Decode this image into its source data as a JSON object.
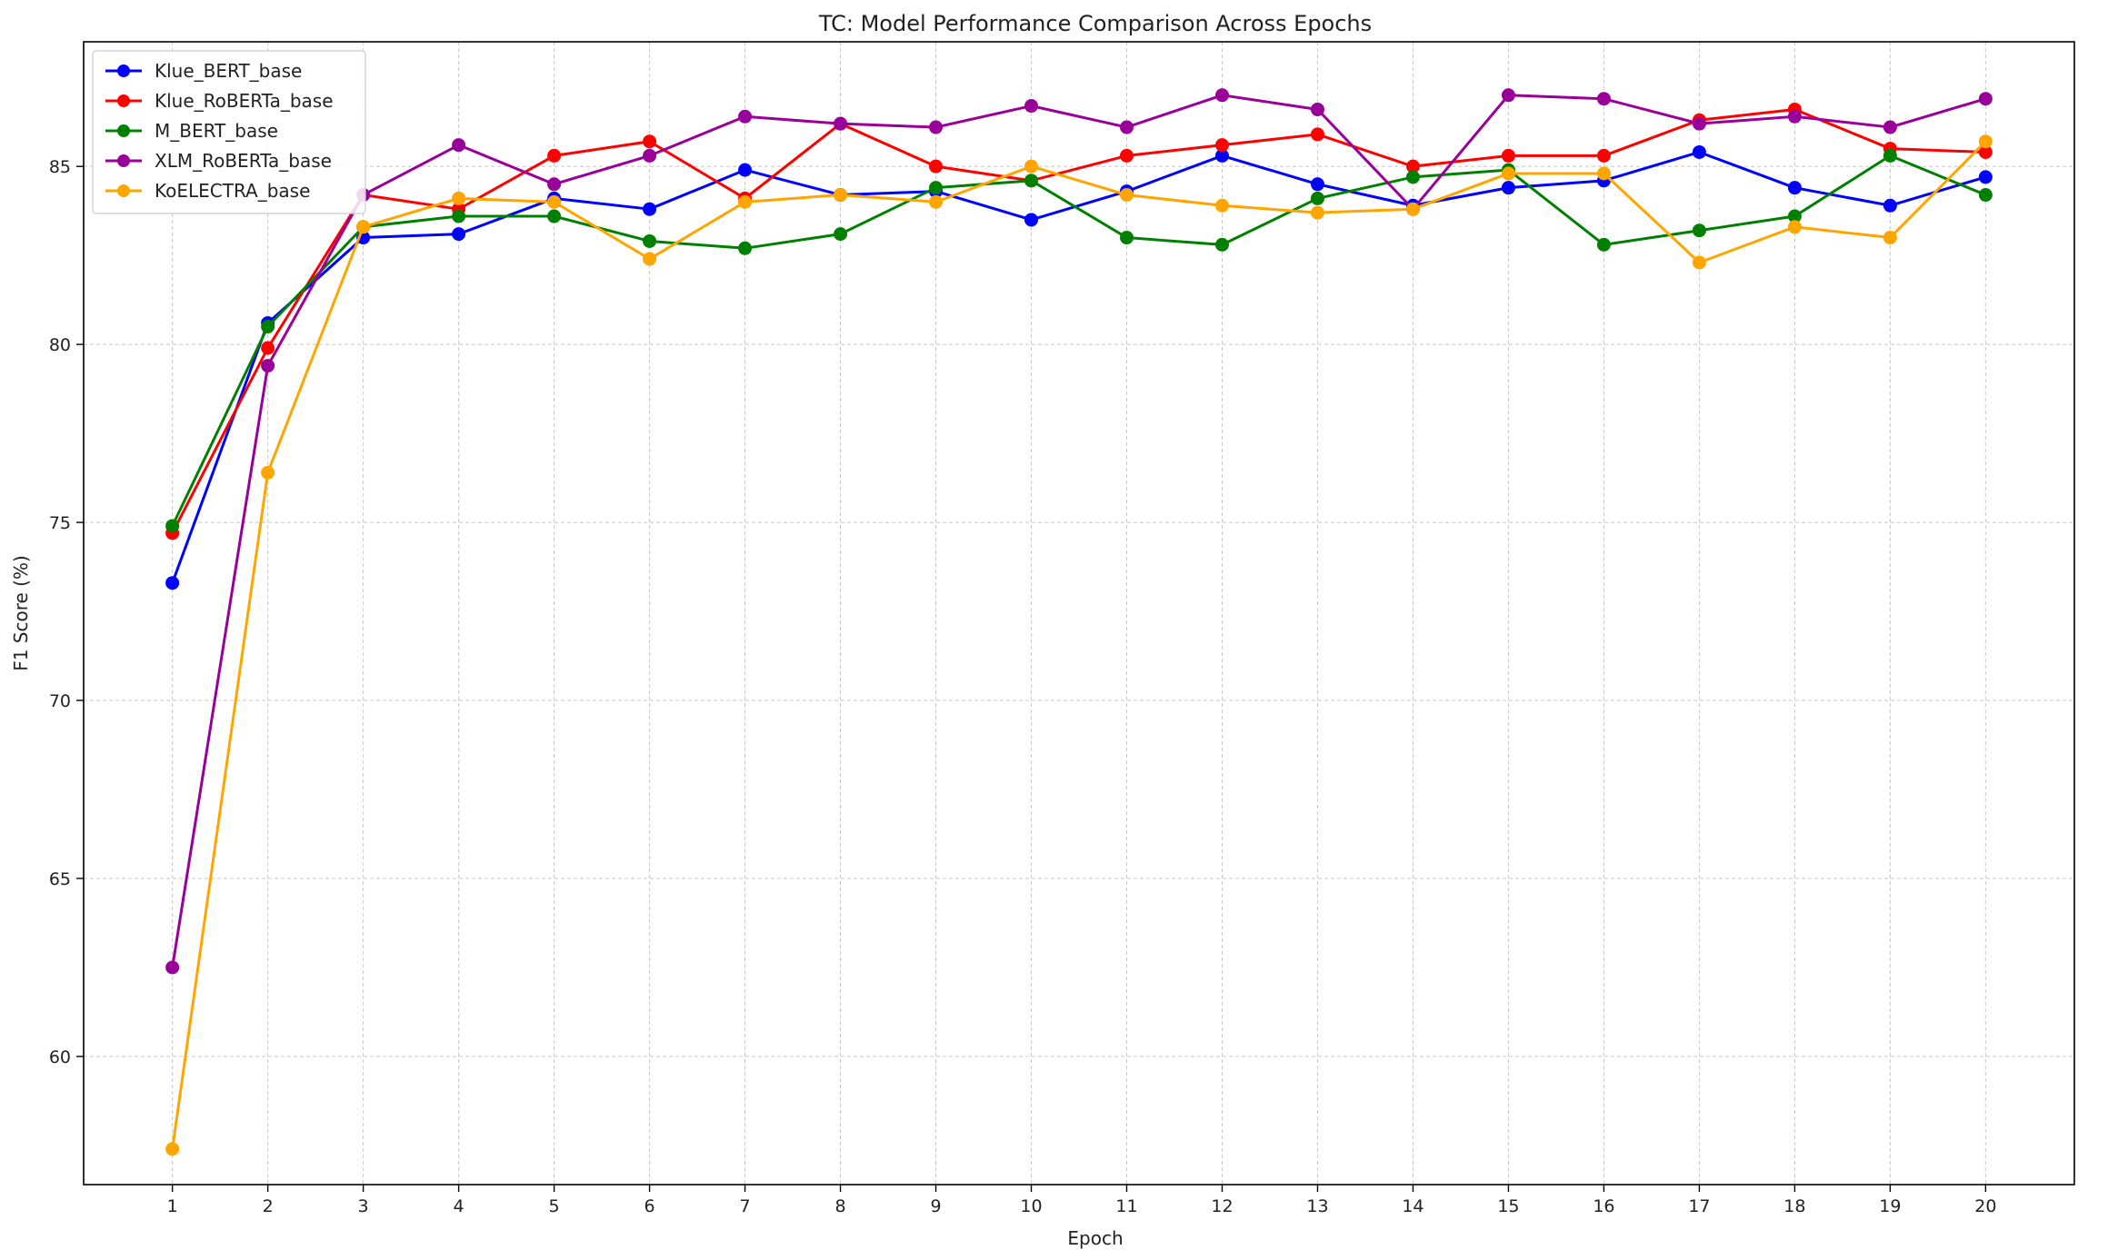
{
  "chart_data": {
    "type": "line",
    "title": "TC: Model Performance Comparison Across Epochs",
    "xlabel": "Epoch",
    "ylabel": "F1 Score (%)",
    "x": [
      1,
      2,
      3,
      4,
      5,
      6,
      7,
      8,
      9,
      10,
      11,
      12,
      13,
      14,
      15,
      16,
      17,
      18,
      19,
      20
    ],
    "xlim": [
      0.07,
      20.93
    ],
    "ylim": [
      56.4,
      88.5
    ],
    "yticks": [
      60,
      65,
      70,
      75,
      80,
      85
    ],
    "grid": true,
    "legend_position": "top-left",
    "series": [
      {
        "name": "Klue_BERT_base",
        "color": "#0000ff",
        "values": [
          73.3,
          80.6,
          83.0,
          83.1,
          84.1,
          83.8,
          84.9,
          84.2,
          84.3,
          83.5,
          84.3,
          85.3,
          84.5,
          83.9,
          84.4,
          84.6,
          85.4,
          84.4,
          83.9,
          84.7
        ]
      },
      {
        "name": "Klue_RoBERTa_base",
        "color": "#ff0000",
        "values": [
          74.7,
          79.9,
          84.2,
          83.8,
          85.3,
          85.7,
          84.1,
          86.2,
          85.0,
          84.6,
          85.3,
          85.6,
          85.9,
          85.0,
          85.3,
          85.3,
          86.3,
          86.6,
          85.5,
          85.4
        ]
      },
      {
        "name": "M_BERT_base",
        "color": "#008000",
        "values": [
          74.9,
          80.5,
          83.3,
          83.6,
          83.6,
          82.9,
          82.7,
          83.1,
          84.4,
          84.6,
          83.0,
          82.8,
          84.1,
          84.7,
          84.9,
          82.8,
          83.2,
          83.6,
          85.3,
          84.2
        ]
      },
      {
        "name": "XLM_RoBERTa_base",
        "color": "#990099",
        "values": [
          62.5,
          79.4,
          84.2,
          85.6,
          84.5,
          85.3,
          86.4,
          86.2,
          86.1,
          86.7,
          86.1,
          87.0,
          86.6,
          83.8,
          87.0,
          86.9,
          86.2,
          86.4,
          86.1,
          86.9
        ]
      },
      {
        "name": "KoELECTRA_base",
        "color": "#ffa500",
        "values": [
          57.4,
          76.4,
          83.3,
          84.1,
          84.0,
          82.4,
          84.0,
          84.2,
          84.0,
          85.0,
          84.2,
          83.9,
          83.7,
          83.8,
          84.8,
          84.8,
          82.3,
          83.3,
          83.0,
          85.7
        ]
      }
    ]
  }
}
